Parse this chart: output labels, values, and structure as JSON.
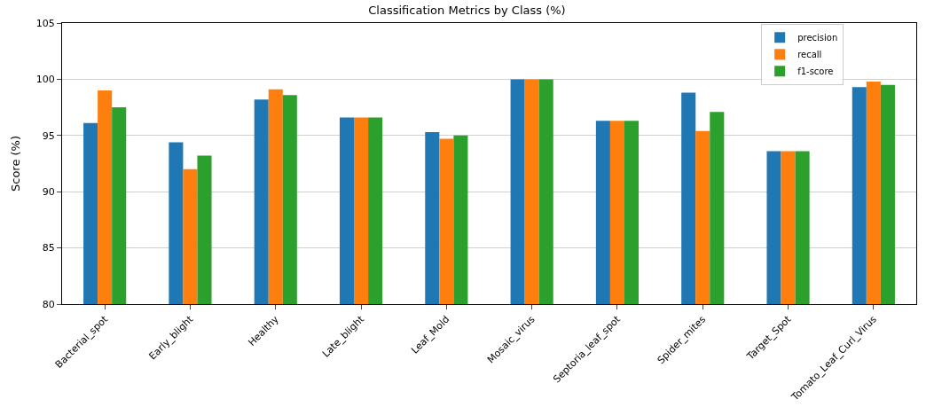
{
  "chart_data": {
    "type": "bar",
    "title": "Classification Metrics by Class (%)",
    "ylabel": "Score (%)",
    "categories": [
      "Bacterial_spot",
      "Early_blight",
      "Healthy",
      "Late_blight",
      "Leaf_Mold",
      "Mosaic_virus",
      "Septoria_leaf_spot",
      "Spider_mites",
      "Target_Spot",
      "Tomato_Leaf_Curl_Virus"
    ],
    "series": [
      {
        "name": "precision",
        "color": "#1f77b4",
        "values": [
          96.1,
          94.4,
          98.2,
          96.6,
          95.3,
          100,
          96.3,
          98.8,
          93.6,
          99.3
        ]
      },
      {
        "name": "recall",
        "color": "#ff7f0e",
        "values": [
          99.0,
          92.0,
          99.1,
          96.6,
          94.7,
          100,
          96.3,
          95.4,
          93.6,
          99.8
        ]
      },
      {
        "name": "f1-score",
        "color": "#2ca02c",
        "values": [
          97.5,
          93.2,
          98.6,
          96.6,
          95.0,
          100,
          96.3,
          97.1,
          93.6,
          99.5
        ]
      }
    ],
    "ylim": [
      80,
      105
    ],
    "yticks": [
      80,
      85,
      90,
      95,
      100,
      105
    ],
    "grid": "y",
    "legend": "top right"
  }
}
